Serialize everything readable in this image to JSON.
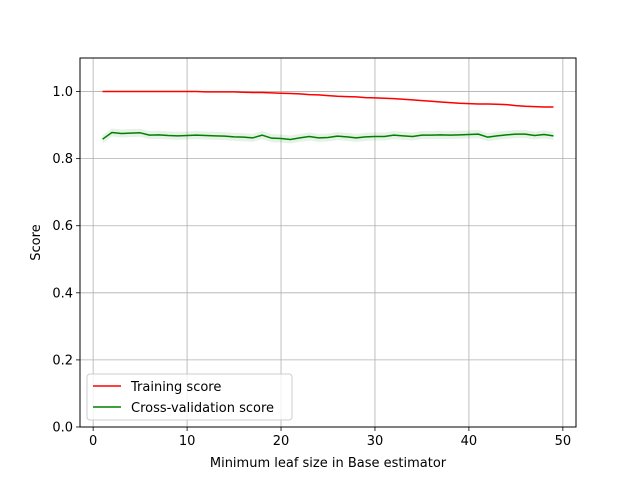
{
  "chart_data": {
    "type": "line",
    "xlabel": "Minimum leaf size in Base estimator",
    "ylabel": "Score",
    "xlim": [
      -1.4,
      51.4
    ],
    "ylim": [
      0.0,
      1.1
    ],
    "xticks": [
      0,
      10,
      20,
      30,
      40,
      50
    ],
    "yticks": [
      0.0,
      0.2,
      0.4,
      0.6,
      0.8,
      1.0
    ],
    "xtick_labels": [
      "0",
      "10",
      "20",
      "30",
      "40",
      "50"
    ],
    "ytick_labels": [
      "0.0",
      "0.2",
      "0.4",
      "0.6",
      "0.8",
      "1.0"
    ],
    "grid": true,
    "legend_position": "lower-left",
    "x": [
      1,
      2,
      3,
      4,
      5,
      6,
      7,
      8,
      9,
      10,
      11,
      12,
      13,
      14,
      15,
      16,
      17,
      18,
      19,
      20,
      21,
      22,
      23,
      24,
      25,
      26,
      27,
      28,
      29,
      30,
      31,
      32,
      33,
      34,
      35,
      36,
      37,
      38,
      39,
      40,
      41,
      42,
      43,
      44,
      45,
      46,
      47,
      48,
      49
    ],
    "series": [
      {
        "name": "Training score",
        "color": "#ff0000",
        "values": [
          1.0,
          1.0,
          1.0,
          1.0,
          1.0,
          1.0,
          1.0,
          1.0,
          1.0,
          1.0,
          1.0,
          0.999,
          0.999,
          0.999,
          0.999,
          0.998,
          0.997,
          0.997,
          0.996,
          0.995,
          0.994,
          0.993,
          0.991,
          0.99,
          0.988,
          0.986,
          0.985,
          0.984,
          0.982,
          0.981,
          0.98,
          0.979,
          0.977,
          0.975,
          0.973,
          0.971,
          0.969,
          0.967,
          0.965,
          0.964,
          0.963,
          0.963,
          0.962,
          0.961,
          0.958,
          0.956,
          0.955,
          0.954,
          0.954
        ],
        "band": 0.002
      },
      {
        "name": "Cross-validation score",
        "color": "#008000",
        "values": [
          0.858,
          0.878,
          0.875,
          0.876,
          0.877,
          0.87,
          0.871,
          0.869,
          0.868,
          0.869,
          0.87,
          0.869,
          0.868,
          0.867,
          0.865,
          0.864,
          0.862,
          0.87,
          0.861,
          0.86,
          0.857,
          0.862,
          0.866,
          0.862,
          0.863,
          0.867,
          0.865,
          0.862,
          0.865,
          0.866,
          0.866,
          0.87,
          0.868,
          0.866,
          0.87,
          0.87,
          0.871,
          0.87,
          0.871,
          0.872,
          0.873,
          0.864,
          0.868,
          0.871,
          0.873,
          0.873,
          0.869,
          0.872,
          0.868
        ],
        "band": 0.012
      }
    ]
  }
}
